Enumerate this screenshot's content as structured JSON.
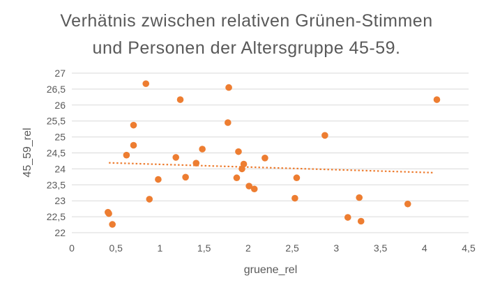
{
  "chart_data": {
    "type": "scatter",
    "title_lines": [
      "Verhätnis zwischen relativen Grünen-Stimmen",
      "und Personen der Altersgruppe 45-59."
    ],
    "xlabel": "gruene_rel",
    "ylabel": "45_59_rel",
    "xlim": [
      0,
      4.5
    ],
    "ylim": [
      22,
      27
    ],
    "x_ticks": [
      "0",
      "0,5",
      "1",
      "1,5",
      "2",
      "2,5",
      "3",
      "3,5",
      "4",
      "4,5"
    ],
    "y_ticks": [
      "22",
      "22,5",
      "23",
      "23,5",
      "24",
      "24,5",
      "25",
      "25,5",
      "26",
      "26,5",
      "27"
    ],
    "grid": "horizontal",
    "legend": "none",
    "colors": {
      "points": "#ED7D31",
      "trendline": "#ED7D31",
      "grid": "#D9D9D9",
      "text": "#595959"
    },
    "series": [
      {
        "points": [
          [
            0.41,
            22.64
          ],
          [
            0.42,
            22.6
          ],
          [
            0.46,
            22.26
          ],
          [
            0.62,
            24.43
          ],
          [
            0.7,
            25.37
          ],
          [
            0.7,
            24.74
          ],
          [
            0.84,
            26.67
          ],
          [
            0.88,
            23.05
          ],
          [
            0.98,
            23.67
          ],
          [
            1.18,
            24.36
          ],
          [
            1.23,
            26.17
          ],
          [
            1.29,
            23.74
          ],
          [
            1.41,
            24.18
          ],
          [
            1.48,
            24.62
          ],
          [
            1.77,
            25.45
          ],
          [
            1.78,
            26.55
          ],
          [
            1.87,
            23.72
          ],
          [
            1.89,
            24.54
          ],
          [
            1.93,
            24.0
          ],
          [
            1.95,
            24.15
          ],
          [
            2.01,
            23.46
          ],
          [
            2.07,
            23.37
          ],
          [
            2.19,
            24.34
          ],
          [
            2.53,
            23.08
          ],
          [
            2.55,
            23.72
          ],
          [
            2.87,
            25.05
          ],
          [
            3.13,
            22.48
          ],
          [
            3.26,
            23.1
          ],
          [
            3.28,
            22.36
          ],
          [
            3.81,
            22.9
          ],
          [
            4.14,
            26.17
          ]
        ]
      }
    ],
    "trendline": {
      "type": "linear",
      "x": [
        0.42,
        4.11
      ],
      "y": [
        24.19,
        23.88
      ]
    }
  }
}
